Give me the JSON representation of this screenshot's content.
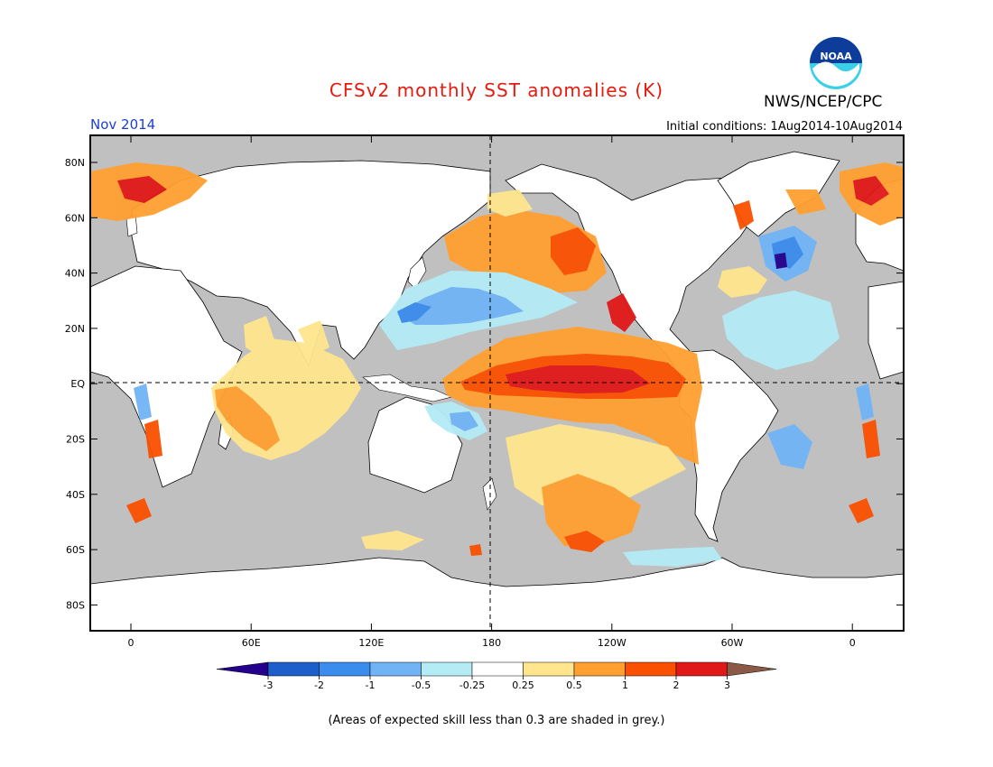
{
  "header": {
    "title": "CFSv2 monthly SST anomalies (K)",
    "agency": "NWS/NCEP/CPC",
    "logo_text": "NOAA",
    "target_month": "Nov 2014",
    "initial_conditions": "Initial conditions: 1Aug2014-10Aug2014"
  },
  "map": {
    "lat_labels": [
      "80N",
      "60N",
      "40N",
      "20N",
      "EQ",
      "20S",
      "40S",
      "60S",
      "80S"
    ],
    "lon_labels": [
      "0",
      "60E",
      "120E",
      "180",
      "120W",
      "60W",
      "0"
    ],
    "background_color": "#c0c0c0",
    "land_color": "#ffffff"
  },
  "colorbar": {
    "colors": [
      "#24008c",
      "#1d5ecb",
      "#3a8ced",
      "#71b4f5",
      "#b4ecf6",
      "#ffffff",
      "#ffe58e",
      "#ffa030",
      "#fa5000",
      "#e01818",
      "#a00000",
      "#8b5a46"
    ],
    "labels": [
      "-3",
      "-2",
      "-1",
      "-0.5",
      "-0.25",
      "0.25",
      "0.5",
      "1",
      "2",
      "3"
    ]
  },
  "footnote": "(Areas of expected skill less than 0.3 are shaded in grey.)"
}
